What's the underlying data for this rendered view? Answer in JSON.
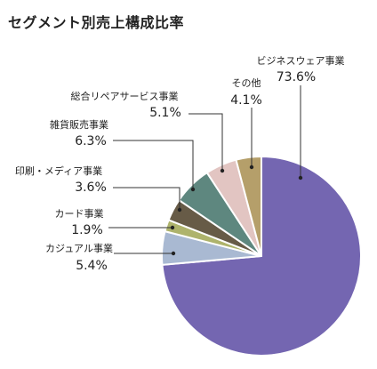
{
  "chart_data": {
    "type": "pie",
    "title": "セグメント別売上構成比率",
    "unit": "%",
    "start_angle_deg": 0,
    "direction": "clockwise",
    "legend": "none",
    "slices": [
      {
        "label": "ビジネスウェア事業",
        "value": 73.6,
        "value_text": "73.6%",
        "color": "#7466b1"
      },
      {
        "label": "カジュアル事業",
        "value": 5.4,
        "value_text": "5.4%",
        "color": "#a9b9d2"
      },
      {
        "label": "カード事業",
        "value": 1.9,
        "value_text": "1.9%",
        "color": "#aeb36c"
      },
      {
        "label": "印刷・メディア事業",
        "value": 3.6,
        "value_text": "3.6%",
        "color": "#675b47"
      },
      {
        "label": "雑貨販売事業",
        "value": 6.3,
        "value_text": "6.3%",
        "color": "#5e877f"
      },
      {
        "label": "総合リペアサービス事業",
        "value": 5.1,
        "value_text": "5.1%",
        "color": "#e2c5c2"
      },
      {
        "label": "その他",
        "value": 4.1,
        "value_text": "4.1%",
        "color": "#b59f6a"
      }
    ]
  }
}
